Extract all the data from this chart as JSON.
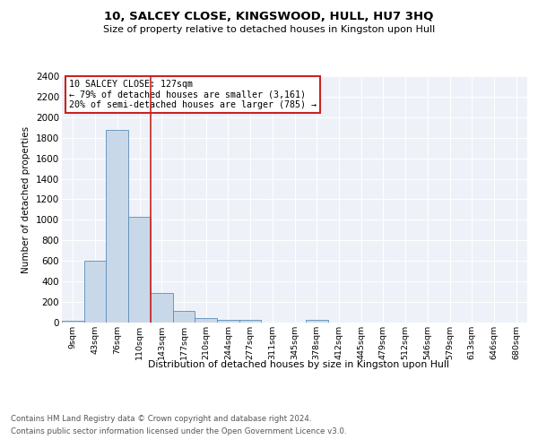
{
  "title1": "10, SALCEY CLOSE, KINGSWOOD, HULL, HU7 3HQ",
  "title2": "Size of property relative to detached houses in Kingston upon Hull",
  "xlabel": "Distribution of detached houses by size in Kingston upon Hull",
  "ylabel": "Number of detached properties",
  "bin_labels": [
    "9sqm",
    "43sqm",
    "76sqm",
    "110sqm",
    "143sqm",
    "177sqm",
    "210sqm",
    "244sqm",
    "277sqm",
    "311sqm",
    "345sqm",
    "378sqm",
    "412sqm",
    "445sqm",
    "479sqm",
    "512sqm",
    "546sqm",
    "579sqm",
    "613sqm",
    "646sqm",
    "680sqm"
  ],
  "bar_heights": [
    20,
    600,
    1880,
    1030,
    290,
    110,
    48,
    25,
    22,
    0,
    0,
    22,
    0,
    0,
    0,
    0,
    0,
    0,
    0,
    0,
    0
  ],
  "bar_color": "#c8d8e8",
  "bar_edge_color": "#5b8db8",
  "vline_x": 3.49,
  "vline_color": "#cc2222",
  "ylim": [
    0,
    2400
  ],
  "yticks": [
    0,
    200,
    400,
    600,
    800,
    1000,
    1200,
    1400,
    1600,
    1800,
    2000,
    2200,
    2400
  ],
  "annotation_title": "10 SALCEY CLOSE: 127sqm",
  "annotation_line1": "← 79% of detached houses are smaller (3,161)",
  "annotation_line2": "20% of semi-detached houses are larger (785) →",
  "annotation_box_color": "#ffffff",
  "annotation_box_edge": "#cc2222",
  "footer1": "Contains HM Land Registry data © Crown copyright and database right 2024.",
  "footer2": "Contains public sector information licensed under the Open Government Licence v3.0.",
  "bg_color": "#eef2f8",
  "fig_bg_color": "#ffffff"
}
